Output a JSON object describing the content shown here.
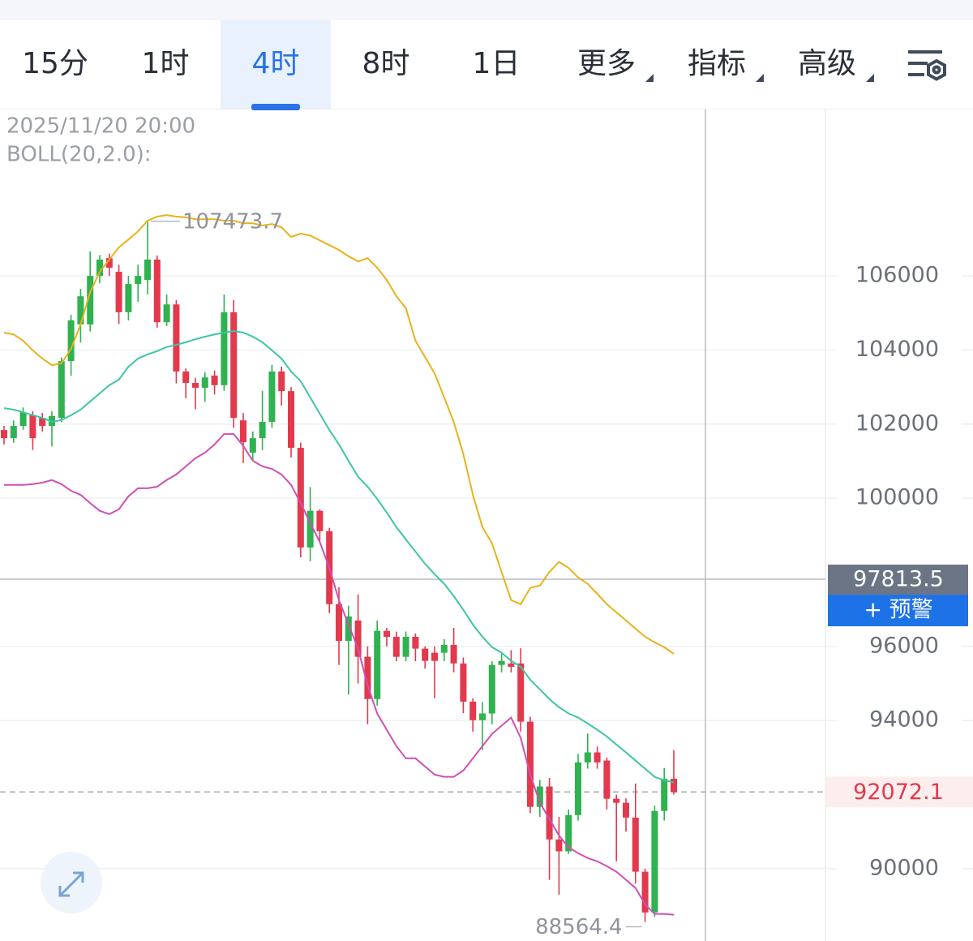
{
  "header": {
    "tabs": [
      "15分",
      "1时",
      "4时",
      "8时",
      "1日",
      "更多",
      "指标",
      "高级"
    ],
    "active_tab": 2
  },
  "info": {
    "timestamp": "2025/11/20 20:00",
    "indicator": "BOLL(20,2.0):"
  },
  "alert_button": "+ 预警",
  "chart_data": {
    "type": "candlestick",
    "up_color": "#2fb24f",
    "down_color": "#e2394d",
    "open": [
      101840,
      101620,
      101950,
      102240,
      102170,
      101950,
      102170,
      103700,
      104690,
      104690,
      106000,
      106480,
      106110,
      105020,
      105780,
      105890,
      106440,
      104750,
      105230,
      103420,
      103110,
      102980,
      103310,
      103050,
      105020,
      102100,
      101230,
      101620,
      102060,
      103420,
      102890,
      101360,
      98670,
      99660,
      99110,
      97140,
      96150,
      96700,
      95720,
      94580,
      96420,
      96260,
      95720,
      96260,
      95940,
      95830,
      95830,
      96040,
      95540,
      94510,
      94010,
      94190,
      95500,
      95540,
      95540,
      93970,
      91670,
      92220,
      90790,
      90470,
      91450,
      92870,
      93140,
      92920,
      91890,
      91780,
      91380,
      89920,
      88820,
      91560,
      92430
    ],
    "high": [
      101950,
      102100,
      102450,
      102350,
      102300,
      102350,
      103800,
      104950,
      105650,
      106660,
      106560,
      106600,
      106300,
      106000,
      106300,
      107473.7,
      106550,
      105500,
      105350,
      103500,
      103250,
      103400,
      103450,
      105500,
      105350,
      102300,
      101800,
      102900,
      103600,
      103550,
      103000,
      101500,
      100300,
      99700,
      99200,
      97600,
      97100,
      97400,
      96000,
      96700,
      96500,
      96400,
      96400,
      96350,
      96000,
      96000,
      96200,
      96500,
      95700,
      94600,
      94500,
      95600,
      95800,
      95900,
      95950,
      94100,
      92400,
      92450,
      91400,
      91600,
      93100,
      93650,
      93300,
      93000,
      92000,
      91900,
      92300,
      90000,
      91700,
      92720,
      93200
    ],
    "low": [
      101450,
      101500,
      101850,
      101300,
      101800,
      101400,
      102050,
      103300,
      104200,
      104500,
      105800,
      106000,
      104700,
      104800,
      105300,
      105500,
      104600,
      104650,
      103100,
      102700,
      102400,
      102600,
      102800,
      102900,
      101900,
      100950,
      101000,
      101300,
      101900,
      102500,
      101100,
      98400,
      98300,
      98800,
      96900,
      95500,
      94700,
      95000,
      93900,
      94400,
      96000,
      95600,
      95600,
      95600,
      95400,
      94600,
      95600,
      95300,
      94200,
      93700,
      93200,
      93900,
      95300,
      95300,
      93700,
      91500,
      91400,
      89700,
      89300,
      90400,
      91300,
      92700,
      92700,
      91600,
      90200,
      91000,
      89600,
      88564.4,
      88700,
      91300,
      92000
    ],
    "close": [
      101620,
      101950,
      102320,
      101620,
      101950,
      102220,
      103700,
      104800,
      105450,
      106000,
      106440,
      106220,
      105020,
      105780,
      106000,
      106440,
      104750,
      105230,
      103420,
      103110,
      102980,
      103260,
      103050,
      105020,
      102170,
      101510,
      101620,
      102060,
      103420,
      102890,
      101360,
      98670,
      99660,
      99110,
      97140,
      96150,
      96810,
      95720,
      94580,
      96420,
      96260,
      95720,
      96260,
      95940,
      95610,
      95610,
      96040,
      95540,
      94510,
      94010,
      94190,
      95500,
      95610,
      95450,
      93970,
      91670,
      92220,
      90790,
      90470,
      91450,
      92870,
      93140,
      92870,
      91890,
      91780,
      91380,
      89920,
      88820,
      91560,
      92430,
      92072.1
    ],
    "series": [
      {
        "color": "#e8b21a",
        "values": [
          104470,
          104420,
          104250,
          103990,
          103770,
          103590,
          103640,
          104030,
          104690,
          105560,
          106110,
          106440,
          106770,
          106980,
          107200,
          107490,
          107600,
          107640,
          107600,
          107580,
          107530,
          107530,
          107530,
          107490,
          107490,
          107420,
          107420,
          107360,
          107400,
          107310,
          107050,
          107140,
          107090,
          106960,
          106830,
          106700,
          106530,
          106390,
          106480,
          106220,
          105890,
          105450,
          105130,
          104250,
          103810,
          103370,
          102720,
          102060,
          101190,
          100090,
          99220,
          98780,
          98010,
          97250,
          97140,
          97580,
          97640,
          98010,
          98280,
          98120,
          97860,
          97690,
          97420,
          97140,
          96920,
          96700,
          96480,
          96260,
          96110,
          95980,
          95800
        ]
      },
      {
        "color": "#3cc6a4",
        "values": [
          102430,
          102390,
          102320,
          102240,
          102170,
          102060,
          102110,
          102240,
          102390,
          102610,
          102830,
          103050,
          103200,
          103550,
          103770,
          103880,
          103970,
          104080,
          104140,
          104210,
          104290,
          104360,
          104420,
          104470,
          104510,
          104470,
          104360,
          104210,
          103990,
          103770,
          103420,
          103160,
          102720,
          102280,
          101840,
          101450,
          101010,
          100580,
          100310,
          99980,
          99610,
          99220,
          98890,
          98560,
          98230,
          97950,
          97690,
          97360,
          96990,
          96590,
          96260,
          95980,
          95830,
          95610,
          95450,
          95100,
          94840,
          94580,
          94360,
          94190,
          94080,
          93920,
          93750,
          93570,
          93350,
          93140,
          92920,
          92700,
          92480,
          92390,
          92330
        ]
      },
      {
        "color": "#d04fb5",
        "values": [
          100360,
          100360,
          100360,
          100380,
          100420,
          100490,
          100380,
          100200,
          100090,
          99870,
          99660,
          99570,
          99700,
          100050,
          100270,
          100270,
          100310,
          100490,
          100640,
          100860,
          101080,
          101230,
          101450,
          101730,
          101730,
          101410,
          101010,
          100860,
          100790,
          100640,
          100360,
          99870,
          99330,
          98820,
          98120,
          97250,
          96590,
          95940,
          94950,
          94190,
          93750,
          93310,
          92980,
          92980,
          92760,
          92540,
          92480,
          92480,
          92650,
          92980,
          93310,
          93640,
          93860,
          94080,
          93530,
          92540,
          91780,
          91340,
          90900,
          90580,
          90420,
          90290,
          90200,
          90070,
          89920,
          89700,
          89480,
          89040,
          88780,
          88780,
          88760
        ]
      }
    ],
    "ylim": [
      88050,
      110490
    ],
    "yticks": [
      90000,
      94000,
      96000,
      100000,
      102000,
      104000,
      106000
    ],
    "grid": true,
    "crosshair_price": 97813.5,
    "last_price": 92072.1
  }
}
